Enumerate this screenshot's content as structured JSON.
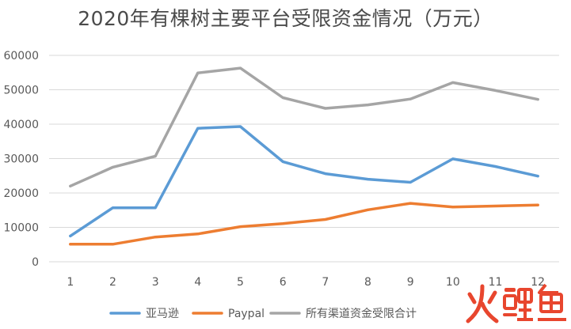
{
  "chart_data": {
    "type": "line",
    "title": "2020年有棵树主要平台受限资金情况（万元）",
    "xlabel": "",
    "ylabel": "",
    "categories": [
      "1",
      "2",
      "3",
      "4",
      "5",
      "6",
      "7",
      "8",
      "9",
      "10",
      "11",
      "12"
    ],
    "ylim": [
      0,
      60000
    ],
    "yticks": [
      "0",
      "10000",
      "20000",
      "30000",
      "40000",
      "50000",
      "60000"
    ],
    "grid": true,
    "legend_position": "bottom",
    "series": [
      {
        "name": "亚马逊",
        "color": "#5b9bd5",
        "values": [
          7500,
          15700,
          15700,
          38800,
          39300,
          29100,
          25600,
          24000,
          23100,
          29900,
          27700,
          24900
        ]
      },
      {
        "name": "Paypal",
        "color": "#ed7d31",
        "values": [
          5100,
          5100,
          7200,
          8100,
          10200,
          11100,
          12300,
          15100,
          17000,
          15900,
          16200,
          16500
        ]
      },
      {
        "name": "所有渠道资金受限合计",
        "color": "#a5a5a5",
        "values": [
          22000,
          27500,
          30700,
          54900,
          56300,
          47700,
          44600,
          45600,
          47300,
          52100,
          49800,
          47200
        ]
      }
    ]
  },
  "watermark": {
    "text": "火鲤鱼",
    "color": "#e8462e"
  }
}
